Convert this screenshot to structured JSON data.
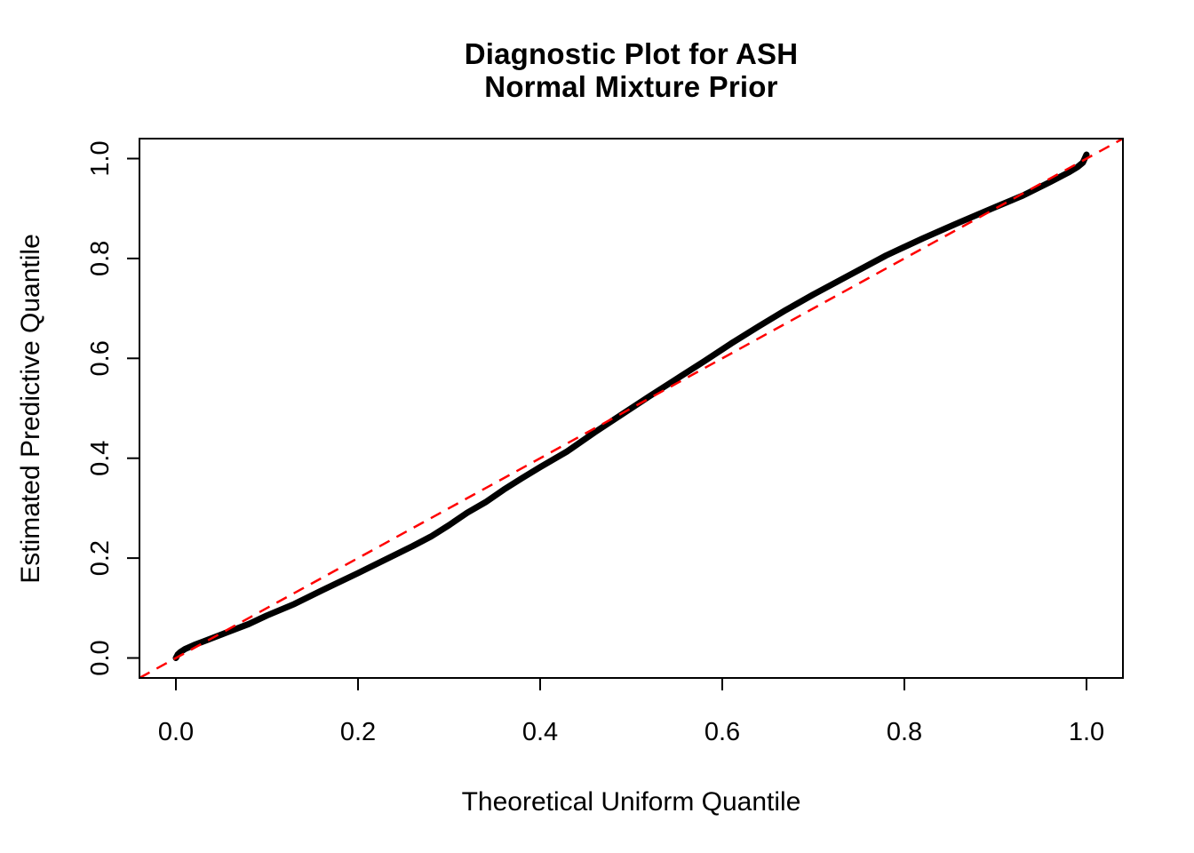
{
  "figure": {
    "title_line1": "Diagnostic Plot for ASH",
    "title_line2": "Normal Mixture Prior",
    "xlabel": "Theoretical Uniform Quantile",
    "ylabel": "Estimated Predictive Quantile"
  },
  "colors": {
    "curve": "#000000",
    "reference_line": "#FF0000",
    "axis": "#000000",
    "background": "#FFFFFF"
  },
  "chart_data": {
    "type": "scatter",
    "title": "Diagnostic Plot for ASH / Normal Mixture Prior",
    "xlabel": "Theoretical Uniform Quantile",
    "ylabel": "Estimated Predictive Quantile",
    "xlim": [
      -0.04,
      1.04
    ],
    "ylim": [
      -0.04,
      1.04
    ],
    "x_ticks": [
      0.0,
      0.2,
      0.4,
      0.6,
      0.8,
      1.0
    ],
    "y_ticks": [
      0.0,
      0.2,
      0.4,
      0.6,
      0.8,
      1.0
    ],
    "grid": false,
    "legend": "none",
    "y_tick_labels_rotated": true,
    "series": [
      {
        "name": "estimated-vs-theoretical-quantiles",
        "type": "points-band",
        "color": "#000000",
        "marker": "dense-points",
        "points": [
          [
            0.0,
            0.0
          ],
          [
            0.002,
            0.007
          ],
          [
            0.005,
            0.012
          ],
          [
            0.01,
            0.018
          ],
          [
            0.02,
            0.026
          ],
          [
            0.03,
            0.033
          ],
          [
            0.05,
            0.047
          ],
          [
            0.08,
            0.068
          ],
          [
            0.1,
            0.085
          ],
          [
            0.13,
            0.108
          ],
          [
            0.16,
            0.135
          ],
          [
            0.2,
            0.17
          ],
          [
            0.24,
            0.206
          ],
          [
            0.26,
            0.224
          ],
          [
            0.28,
            0.243
          ],
          [
            0.3,
            0.266
          ],
          [
            0.32,
            0.291
          ],
          [
            0.34,
            0.312
          ],
          [
            0.36,
            0.337
          ],
          [
            0.38,
            0.36
          ],
          [
            0.4,
            0.382
          ],
          [
            0.43,
            0.414
          ],
          [
            0.46,
            0.452
          ],
          [
            0.49,
            0.488
          ],
          [
            0.52,
            0.524
          ],
          [
            0.55,
            0.559
          ],
          [
            0.58,
            0.594
          ],
          [
            0.61,
            0.63
          ],
          [
            0.64,
            0.664
          ],
          [
            0.67,
            0.697
          ],
          [
            0.7,
            0.728
          ],
          [
            0.74,
            0.767
          ],
          [
            0.78,
            0.806
          ],
          [
            0.82,
            0.84
          ],
          [
            0.86,
            0.872
          ],
          [
            0.9,
            0.903
          ],
          [
            0.93,
            0.926
          ],
          [
            0.96,
            0.953
          ],
          [
            0.98,
            0.972
          ],
          [
            0.99,
            0.983
          ],
          [
            0.996,
            0.992
          ],
          [
            1.0,
            1.008
          ]
        ]
      },
      {
        "name": "identity-reference-line",
        "type": "abline",
        "slope": 1,
        "intercept": 0,
        "color": "#FF0000",
        "line_style": "dashed"
      }
    ]
  }
}
